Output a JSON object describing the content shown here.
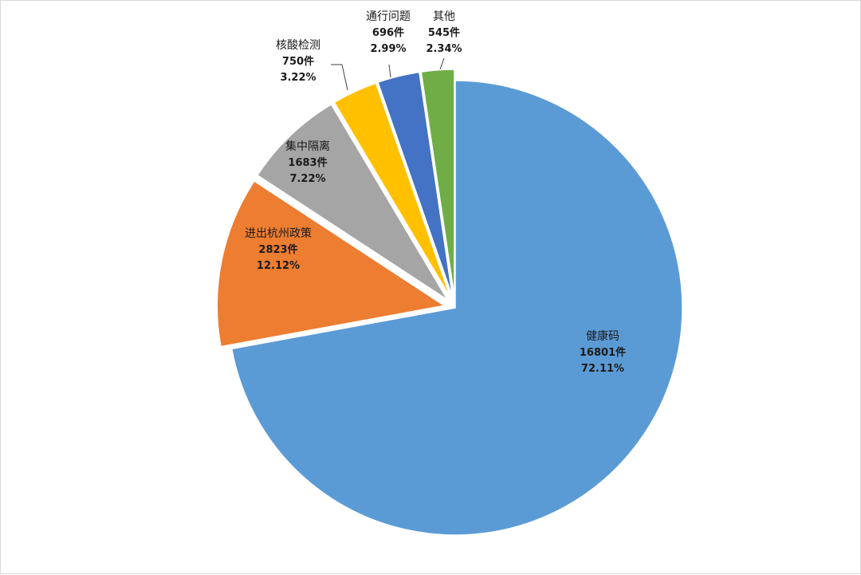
{
  "chart_data": {
    "type": "pie",
    "title": "",
    "unit": "件",
    "slices": [
      {
        "name": "健康码",
        "count": 16801,
        "count_label": "16801件",
        "percent_label": "72.11%",
        "color": "#5b9bd5",
        "exploded": false
      },
      {
        "name": "进出杭州政策",
        "count": 2823,
        "count_label": "2823件",
        "percent_label": "12.12%",
        "color": "#ed7d31",
        "exploded": true
      },
      {
        "name": "集中隔离",
        "count": 1683,
        "count_label": "1683件",
        "percent_label": "7.22%",
        "color": "#a5a5a5",
        "exploded": true
      },
      {
        "name": "核酸检测",
        "count": 750,
        "count_label": "750件",
        "percent_label": "3.22%",
        "color": "#ffc000",
        "exploded": true
      },
      {
        "name": "通行问题",
        "count": 696,
        "count_label": "696件",
        "percent_label": "2.99%",
        "color": "#4472c4",
        "exploded": true
      },
      {
        "name": "其他",
        "count": 545,
        "count_label": "545件",
        "percent_label": "2.34%",
        "color": "#70ad47",
        "exploded": true
      }
    ],
    "legend": "none",
    "labels": "name, count, percent"
  }
}
